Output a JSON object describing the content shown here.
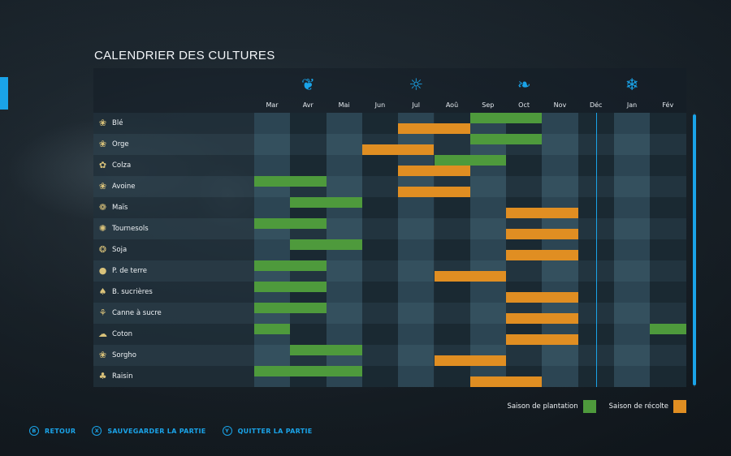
{
  "title": "CALENDRIER DES CULTURES",
  "colors": {
    "accent": "#1aa3e8",
    "plant": "#4e9a3c",
    "harvest": "#e08e22",
    "stripe_dark": "#1d2c35",
    "stripe_light": "#2d4350"
  },
  "seasons": [
    {
      "name": "spring",
      "icon": "sprout-icon",
      "glyph": "❦"
    },
    {
      "name": "summer",
      "icon": "sun-icon",
      "glyph": "☼"
    },
    {
      "name": "autumn",
      "icon": "leaves-icon",
      "glyph": "❧"
    },
    {
      "name": "winter",
      "icon": "snowflake-icon",
      "glyph": "❄"
    }
  ],
  "months": [
    "Mar",
    "Avr",
    "Mai",
    "Jun",
    "Jul",
    "Aoû",
    "Sep",
    "Oct",
    "Nov",
    "Déc",
    "Jan",
    "Fév"
  ],
  "current_month_index": 9,
  "crops": [
    {
      "name": "Blé",
      "icon": "wheat-icon",
      "glyph": "❀",
      "plant": [
        [
          6,
          7
        ]
      ],
      "harvest": [
        [
          4,
          5
        ]
      ]
    },
    {
      "name": "Orge",
      "icon": "barley-icon",
      "glyph": "❀",
      "plant": [
        [
          6,
          7
        ]
      ],
      "harvest": [
        [
          3,
          4
        ]
      ]
    },
    {
      "name": "Colza",
      "icon": "canola-icon",
      "glyph": "✿",
      "plant": [
        [
          5,
          6
        ]
      ],
      "harvest": [
        [
          4,
          5
        ]
      ]
    },
    {
      "name": "Avoine",
      "icon": "oat-icon",
      "glyph": "❀",
      "plant": [
        [
          0,
          1
        ]
      ],
      "harvest": [
        [
          4,
          5
        ]
      ]
    },
    {
      "name": "Maïs",
      "icon": "corn-icon",
      "glyph": "❁",
      "plant": [
        [
          1,
          2
        ]
      ],
      "harvest": [
        [
          7,
          8
        ]
      ]
    },
    {
      "name": "Tournesols",
      "icon": "sunflower-icon",
      "glyph": "✺",
      "plant": [
        [
          0,
          1
        ]
      ],
      "harvest": [
        [
          7,
          8
        ]
      ]
    },
    {
      "name": "Soja",
      "icon": "soybean-icon",
      "glyph": "❂",
      "plant": [
        [
          1,
          2
        ]
      ],
      "harvest": [
        [
          7,
          8
        ]
      ]
    },
    {
      "name": "P. de terre",
      "icon": "potato-icon",
      "glyph": "●",
      "plant": [
        [
          0,
          1
        ]
      ],
      "harvest": [
        [
          5,
          6
        ]
      ]
    },
    {
      "name": "B. sucrières",
      "icon": "sugarbeet-icon",
      "glyph": "♠",
      "plant": [
        [
          0,
          1
        ]
      ],
      "harvest": [
        [
          7,
          8
        ]
      ]
    },
    {
      "name": "Canne à sucre",
      "icon": "sugarcane-icon",
      "glyph": "⚘",
      "plant": [
        [
          0,
          1
        ]
      ],
      "harvest": [
        [
          7,
          8
        ]
      ]
    },
    {
      "name": "Coton",
      "icon": "cotton-icon",
      "glyph": "☁",
      "plant": [
        [
          0,
          0
        ],
        [
          11,
          11
        ]
      ],
      "harvest": [
        [
          7,
          8
        ]
      ]
    },
    {
      "name": "Sorgho",
      "icon": "sorghum-icon",
      "glyph": "❀",
      "plant": [
        [
          1,
          2
        ]
      ],
      "harvest": [
        [
          5,
          6
        ]
      ]
    },
    {
      "name": "Raisin",
      "icon": "grape-icon",
      "glyph": "♣",
      "plant": [
        [
          0,
          2
        ]
      ],
      "harvest": [
        [
          6,
          7
        ]
      ]
    }
  ],
  "legend": {
    "plant_label": "Saison de plantation",
    "harvest_label": "Saison de récolte"
  },
  "footer": {
    "back": {
      "key": "B",
      "label": "RETOUR"
    },
    "save": {
      "key": "X",
      "label": "SAUVEGARDER LA PARTIE"
    },
    "quit": {
      "key": "Y",
      "label": "QUITTER LA PARTIE"
    }
  }
}
